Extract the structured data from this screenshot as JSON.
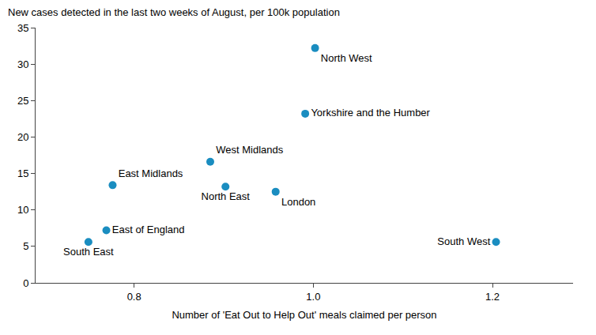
{
  "chart_data": {
    "type": "scatter",
    "y_label": "New cases detected in the last two weeks of August, per 100k population",
    "x_label": "Number of 'Eat Out to Help Out' meals claimed per person",
    "labels": [
      "North West",
      "Yorkshire and the Humber",
      "West Midlands",
      "East Midlands",
      "North East",
      "London",
      "East of England",
      "South East",
      "South West"
    ],
    "x": [
      1.002,
      0.991,
      0.885,
      0.776,
      0.902,
      0.958,
      0.769,
      0.749,
      1.204
    ],
    "values": [
      32.2,
      23.2,
      16.6,
      13.4,
      13.2,
      12.5,
      7.2,
      5.6,
      5.6
    ],
    "color": "#1a8dc0",
    "xlim": [
      0.69,
      1.29
    ],
    "xticks": [
      0.8,
      {
        "value": 1,
        "label": "1.0"
      },
      1.2
    ],
    "ylim": [
      0,
      35
    ],
    "yticks": [
      0,
      5,
      10,
      15,
      20,
      25,
      30,
      35
    ],
    "grid": false
  }
}
